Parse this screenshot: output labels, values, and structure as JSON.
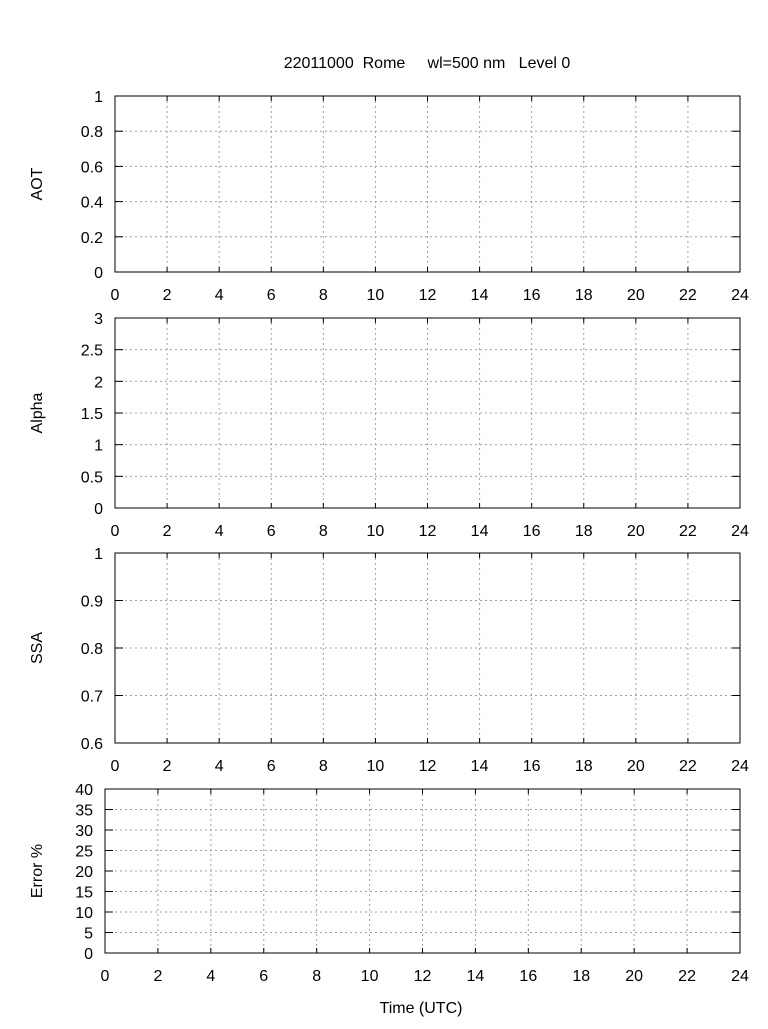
{
  "chart_data": {
    "title": "22011000  Rome     wl=500 nm   Level 0",
    "xlabel": "Time (UTC)",
    "panels": [
      {
        "type": "scatter",
        "ylabel": "AOT",
        "xlim": [
          0,
          24
        ],
        "ylim": [
          0,
          1
        ],
        "xticks": [
          "0",
          "2",
          "4",
          "6",
          "8",
          "10",
          "12",
          "14",
          "16",
          "18",
          "20",
          "22",
          "24"
        ],
        "yticks": [
          "0",
          "0.2",
          "0.4",
          "0.6",
          "0.8",
          "1"
        ],
        "grid": true,
        "points": []
      },
      {
        "type": "scatter",
        "ylabel": "Alpha",
        "xlim": [
          0,
          24
        ],
        "ylim": [
          0,
          3
        ],
        "xticks": [
          "0",
          "2",
          "4",
          "6",
          "8",
          "10",
          "12",
          "14",
          "16",
          "18",
          "20",
          "22",
          "24"
        ],
        "yticks": [
          "0",
          "0.5",
          "1",
          "1.5",
          "2",
          "2.5",
          "3"
        ],
        "grid": true,
        "points": []
      },
      {
        "type": "scatter",
        "ylabel": "SSA",
        "xlim": [
          0,
          24
        ],
        "ylim": [
          0.6,
          1
        ],
        "xticks": [
          "0",
          "2",
          "4",
          "6",
          "8",
          "10",
          "12",
          "14",
          "16",
          "18",
          "20",
          "22",
          "24"
        ],
        "yticks": [
          "0.6",
          "0.7",
          "0.8",
          "0.9",
          "1"
        ],
        "grid": true,
        "points": []
      },
      {
        "type": "scatter",
        "ylabel": "Error %",
        "xlim": [
          0,
          24
        ],
        "ylim": [
          0,
          40
        ],
        "xticks": [
          "0",
          "2",
          "4",
          "6",
          "8",
          "10",
          "12",
          "14",
          "16",
          "18",
          "20",
          "22",
          "24"
        ],
        "yticks": [
          "0",
          "5",
          "10",
          "15",
          "20",
          "25",
          "30",
          "35",
          "40"
        ],
        "grid": true,
        "points": []
      }
    ]
  }
}
